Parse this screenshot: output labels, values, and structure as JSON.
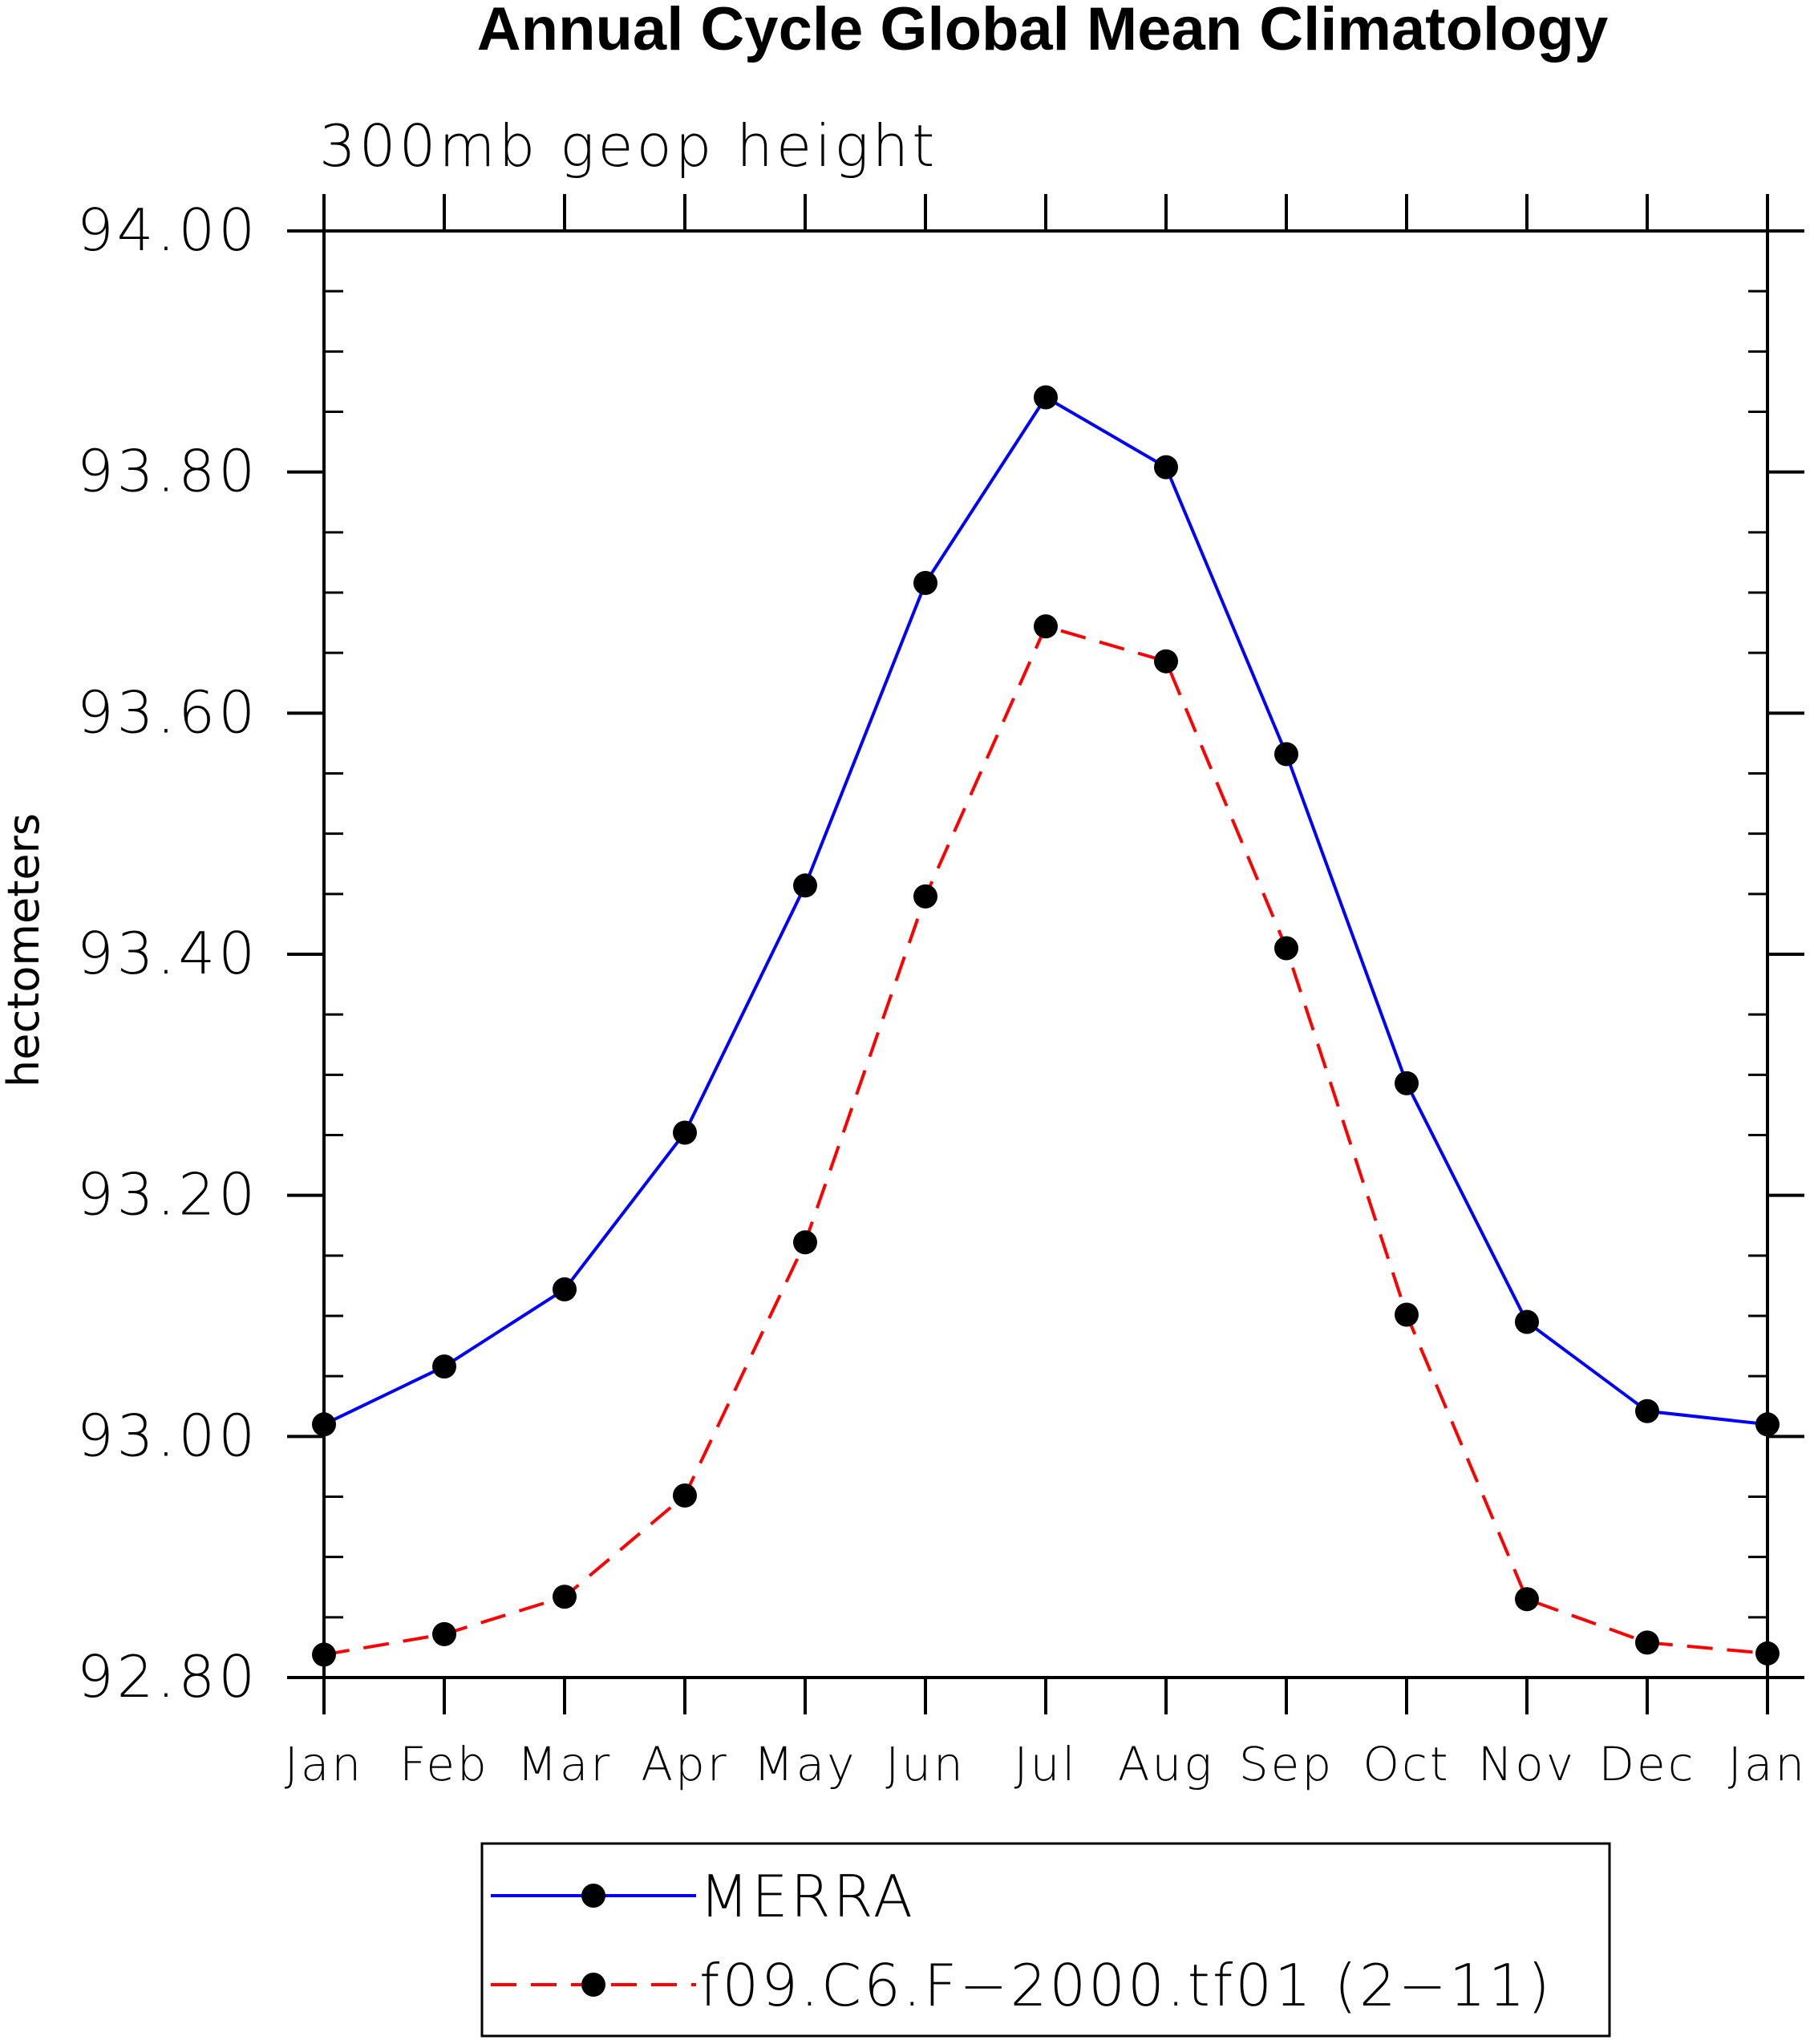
{
  "chart_data": {
    "type": "line",
    "title": "Annual Cycle Global Mean Climatology",
    "subtitle": "300mb geop height",
    "xlabel": "",
    "ylabel": "hectometers",
    "categories": [
      "Jan",
      "Feb",
      "Mar",
      "Apr",
      "May",
      "Jun",
      "Jul",
      "Aug",
      "Sep",
      "Oct",
      "Nov",
      "Dec",
      "Jan"
    ],
    "ylim": [
      92.8,
      94.0
    ],
    "yticks": [
      "92.80",
      "93.00",
      "93.20",
      "93.40",
      "93.60",
      "93.80",
      "94.00"
    ],
    "y_minor_step": 0.05,
    "grid": false,
    "legend_position": "bottom-center",
    "series": [
      {
        "name": "MERRA",
        "color": "#0000ff",
        "dashed": false,
        "marker": "filled-circle",
        "values": [
          93.01,
          93.058,
          93.122,
          93.252,
          93.457,
          93.708,
          93.862,
          93.804,
          93.566,
          93.293,
          93.095,
          93.021,
          93.01
        ]
      },
      {
        "name": "f09.C6.F−2000.tf01 (2−11)",
        "color": "#ff0000",
        "dashed": true,
        "marker": "filled-circle",
        "values": [
          92.819,
          92.836,
          92.867,
          92.951,
          93.161,
          93.448,
          93.672,
          93.643,
          93.405,
          93.101,
          92.865,
          92.829,
          92.82
        ]
      }
    ]
  }
}
